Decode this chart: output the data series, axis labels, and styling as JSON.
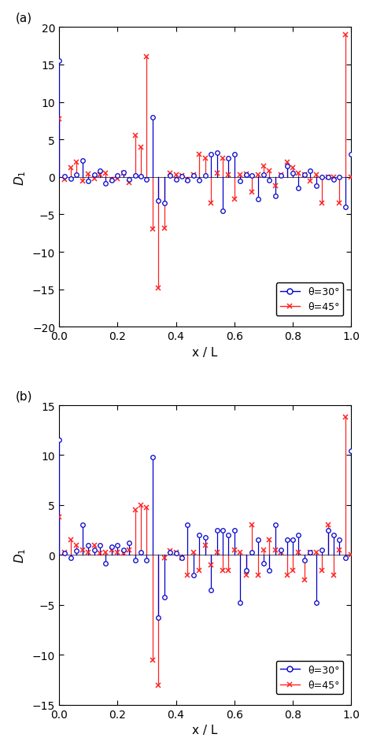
{
  "panel_a": {
    "label": "(a)",
    "ylim": [
      -20,
      20
    ],
    "yticks": [
      -20,
      -15,
      -10,
      -5,
      0,
      5,
      10,
      15,
      20
    ],
    "blue_color": "#0000CC",
    "red_color": "#FF2222",
    "ylabel": "D_1",
    "xlabel": "x / L",
    "blue_x": [
      0,
      2,
      4,
      6,
      8,
      10,
      12,
      14,
      16,
      18,
      20,
      22,
      24,
      26,
      28,
      30,
      32,
      34,
      36,
      38,
      40,
      42,
      44,
      46,
      48,
      50,
      52,
      54,
      56,
      58,
      60,
      62,
      64,
      66,
      68,
      70,
      72,
      74,
      76,
      78,
      80,
      82,
      84,
      86,
      88,
      90,
      92,
      94,
      96,
      98,
      100
    ],
    "blue_y": [
      15.5,
      0.1,
      -0.2,
      0.3,
      2.2,
      -0.5,
      0.3,
      0.8,
      -0.9,
      -0.4,
      0.2,
      0.6,
      -0.3,
      0.2,
      0.1,
      -0.3,
      8.0,
      -3.2,
      -3.5,
      0.2,
      -0.3,
      0.1,
      -0.4,
      0.2,
      -0.4,
      0.2,
      3.0,
      3.2,
      -4.5,
      2.5,
      3.0,
      -0.5,
      0.3,
      0.2,
      -3.0,
      0.3,
      -0.4,
      -2.5,
      0.2,
      1.5,
      0.5,
      -1.5,
      0.3,
      0.8,
      -1.2,
      0.0,
      0.0,
      -0.3,
      0.0,
      -4.0,
      3.0
    ],
    "red_x": [
      0,
      2,
      4,
      6,
      8,
      10,
      12,
      14,
      16,
      18,
      20,
      22,
      24,
      26,
      28,
      30,
      32,
      34,
      36,
      38,
      40,
      42,
      44,
      46,
      48,
      50,
      52,
      54,
      56,
      58,
      60,
      62,
      64,
      66,
      68,
      70,
      72,
      74,
      76,
      78,
      80,
      82,
      84,
      86,
      88,
      90,
      92,
      94,
      96,
      98,
      100
    ],
    "red_y": [
      7.8,
      -0.3,
      1.2,
      2.0,
      -0.5,
      0.4,
      -0.2,
      0.3,
      0.5,
      -0.3,
      -0.2,
      0.5,
      -0.8,
      5.5,
      4.0,
      16.0,
      -7.0,
      -14.8,
      -6.8,
      0.5,
      0.3,
      0.2,
      -0.3,
      0.3,
      3.0,
      2.5,
      -3.5,
      0.5,
      2.5,
      0.3,
      -3.0,
      0.3,
      0.4,
      -2.0,
      0.3,
      1.5,
      0.8,
      -1.2,
      0.3,
      2.0,
      1.2,
      0.5,
      0.3,
      -0.5,
      0.3,
      -3.5,
      0.0,
      0.0,
      -3.5,
      19.0,
      0.0
    ]
  },
  "panel_b": {
    "label": "(b)",
    "ylim": [
      -15,
      15
    ],
    "yticks": [
      -15,
      -10,
      -5,
      0,
      5,
      10,
      15
    ],
    "blue_color": "#0000CC",
    "red_color": "#FF2222",
    "ylabel": "D_1",
    "xlabel": "x / L",
    "blue_x": [
      0,
      2,
      4,
      6,
      8,
      10,
      12,
      14,
      16,
      18,
      20,
      22,
      24,
      26,
      28,
      30,
      32,
      34,
      36,
      38,
      40,
      42,
      44,
      46,
      48,
      50,
      52,
      54,
      56,
      58,
      60,
      62,
      64,
      66,
      68,
      70,
      72,
      74,
      76,
      78,
      80,
      82,
      84,
      86,
      88,
      90,
      92,
      94,
      96,
      98,
      100
    ],
    "blue_y": [
      11.5,
      0.2,
      -0.3,
      0.4,
      3.0,
      1.0,
      0.5,
      1.0,
      -0.8,
      0.8,
      1.0,
      0.5,
      1.2,
      -0.5,
      0.3,
      -0.5,
      9.8,
      -6.3,
      -4.2,
      0.3,
      0.2,
      -0.3,
      3.0,
      -2.0,
      2.0,
      1.8,
      -3.5,
      2.5,
      2.5,
      2.0,
      2.5,
      -4.8,
      -1.5,
      0.3,
      1.5,
      -0.8,
      -1.5,
      3.0,
      0.5,
      1.5,
      1.5,
      2.0,
      -0.5,
      0.3,
      -4.8,
      0.5,
      2.5,
      2.0,
      1.5,
      -0.3,
      10.4
    ],
    "red_x": [
      0,
      2,
      4,
      6,
      8,
      10,
      12,
      14,
      16,
      18,
      20,
      22,
      24,
      26,
      28,
      30,
      32,
      34,
      36,
      38,
      40,
      42,
      44,
      46,
      48,
      50,
      52,
      54,
      56,
      58,
      60,
      62,
      64,
      66,
      68,
      70,
      72,
      74,
      76,
      78,
      80,
      82,
      84,
      86,
      88,
      90,
      92,
      94,
      96,
      98,
      100
    ],
    "red_y": [
      3.8,
      0.3,
      1.5,
      1.0,
      0.5,
      0.3,
      1.0,
      0.2,
      0.3,
      0.5,
      0.3,
      0.2,
      0.5,
      4.5,
      5.0,
      4.8,
      -10.5,
      -13.0,
      -0.3,
      0.4,
      0.3,
      -0.3,
      -2.0,
      0.3,
      -1.5,
      1.0,
      -1.0,
      0.3,
      -1.5,
      -1.5,
      0.5,
      0.3,
      -2.0,
      3.0,
      -2.0,
      0.5,
      1.5,
      0.5,
      0.3,
      -2.0,
      -1.5,
      0.3,
      -2.5,
      0.3,
      0.3,
      -1.5,
      3.0,
      -2.0,
      0.5,
      13.8,
      0.0
    ]
  },
  "legend": {
    "blue_label": "θ=30°",
    "red_label": "θ=45°"
  }
}
